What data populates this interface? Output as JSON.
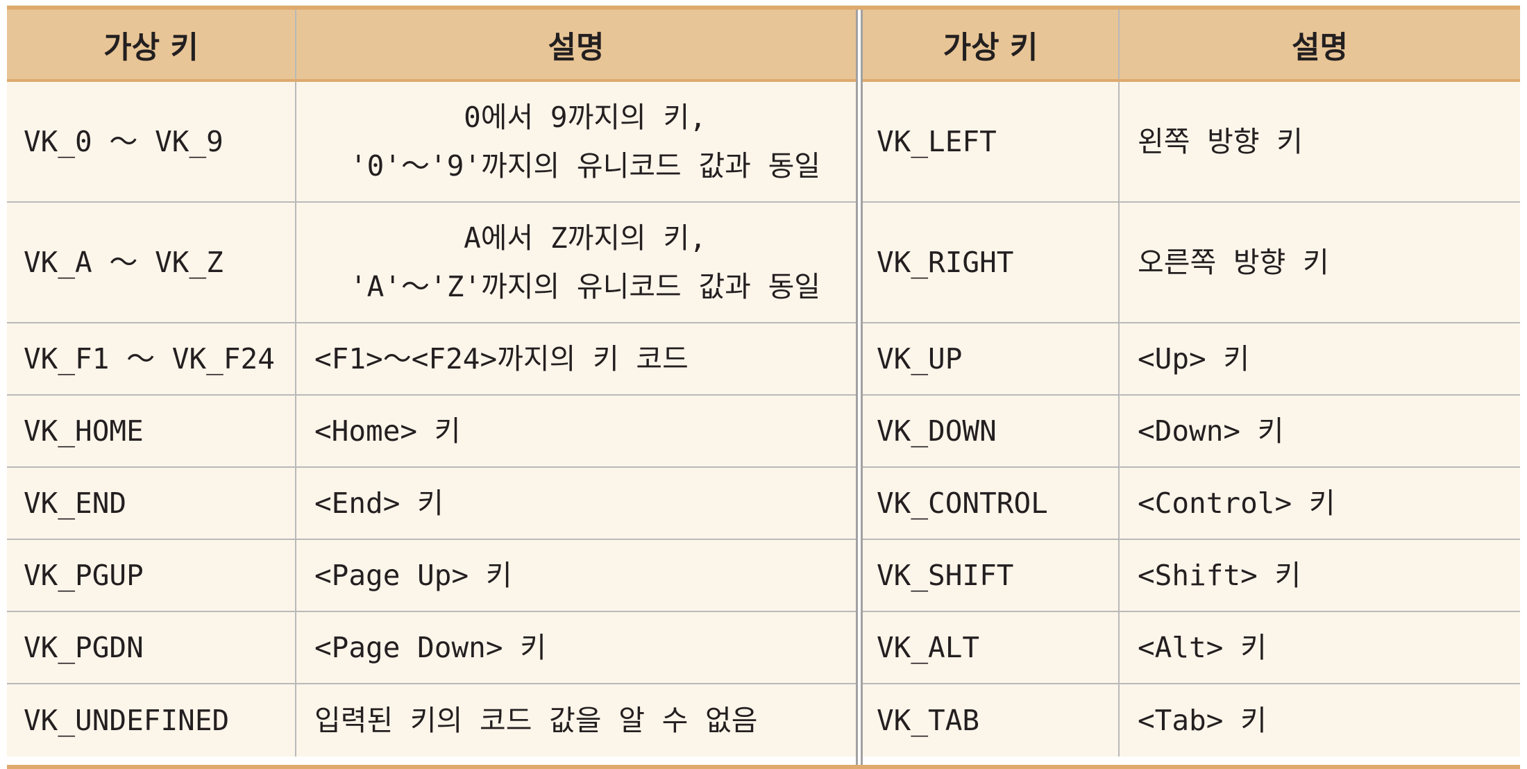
{
  "headers": {
    "key": "가상 키",
    "desc": "설명"
  },
  "left_rows": [
    {
      "key": "VK_0 ～ VK_9",
      "desc1": "0에서 9까지의 키,",
      "desc2": "'0'～'9'까지의 유니코드 값과 동일"
    },
    {
      "key": "VK_A ～ VK_Z",
      "desc1": "A에서 Z까지의 키,",
      "desc2": "'A'～'Z'까지의 유니코드 값과 동일"
    },
    {
      "key": "VK_F1 ～ VK_F24",
      "desc1": "<F1>～<F24>까지의 키 코드"
    },
    {
      "key": "VK_HOME",
      "desc1": "<Home> 키"
    },
    {
      "key": "VK_END",
      "desc1": "<End> 키"
    },
    {
      "key": "VK_PGUP",
      "desc1": "<Page Up> 키"
    },
    {
      "key": "VK_PGDN",
      "desc1": "<Page Down> 키"
    },
    {
      "key": "VK_UNDEFINED",
      "desc1": "입력된 키의 코드 값을 알 수 없음"
    }
  ],
  "right_rows": [
    {
      "key": "VK_LEFT",
      "desc": "왼쪽 방향 키"
    },
    {
      "key": "VK_RIGHT",
      "desc": "오른쪽 방향 키"
    },
    {
      "key": "VK_UP",
      "desc": "<Up> 키"
    },
    {
      "key": "VK_DOWN",
      "desc": "<Down> 키"
    },
    {
      "key": "VK_CONTROL",
      "desc": "<Control> 키"
    },
    {
      "key": "VK_SHIFT",
      "desc": "<Shift> 키"
    },
    {
      "key": "VK_ALT",
      "desc": "<Alt> 키"
    },
    {
      "key": "VK_TAB",
      "desc": "<Tab> 키"
    }
  ],
  "colors": {
    "header_bg": "#e8c596",
    "row_bg": "#fcf5ea",
    "rule": "#deaa6e",
    "grid": "#b9b9b9"
  }
}
